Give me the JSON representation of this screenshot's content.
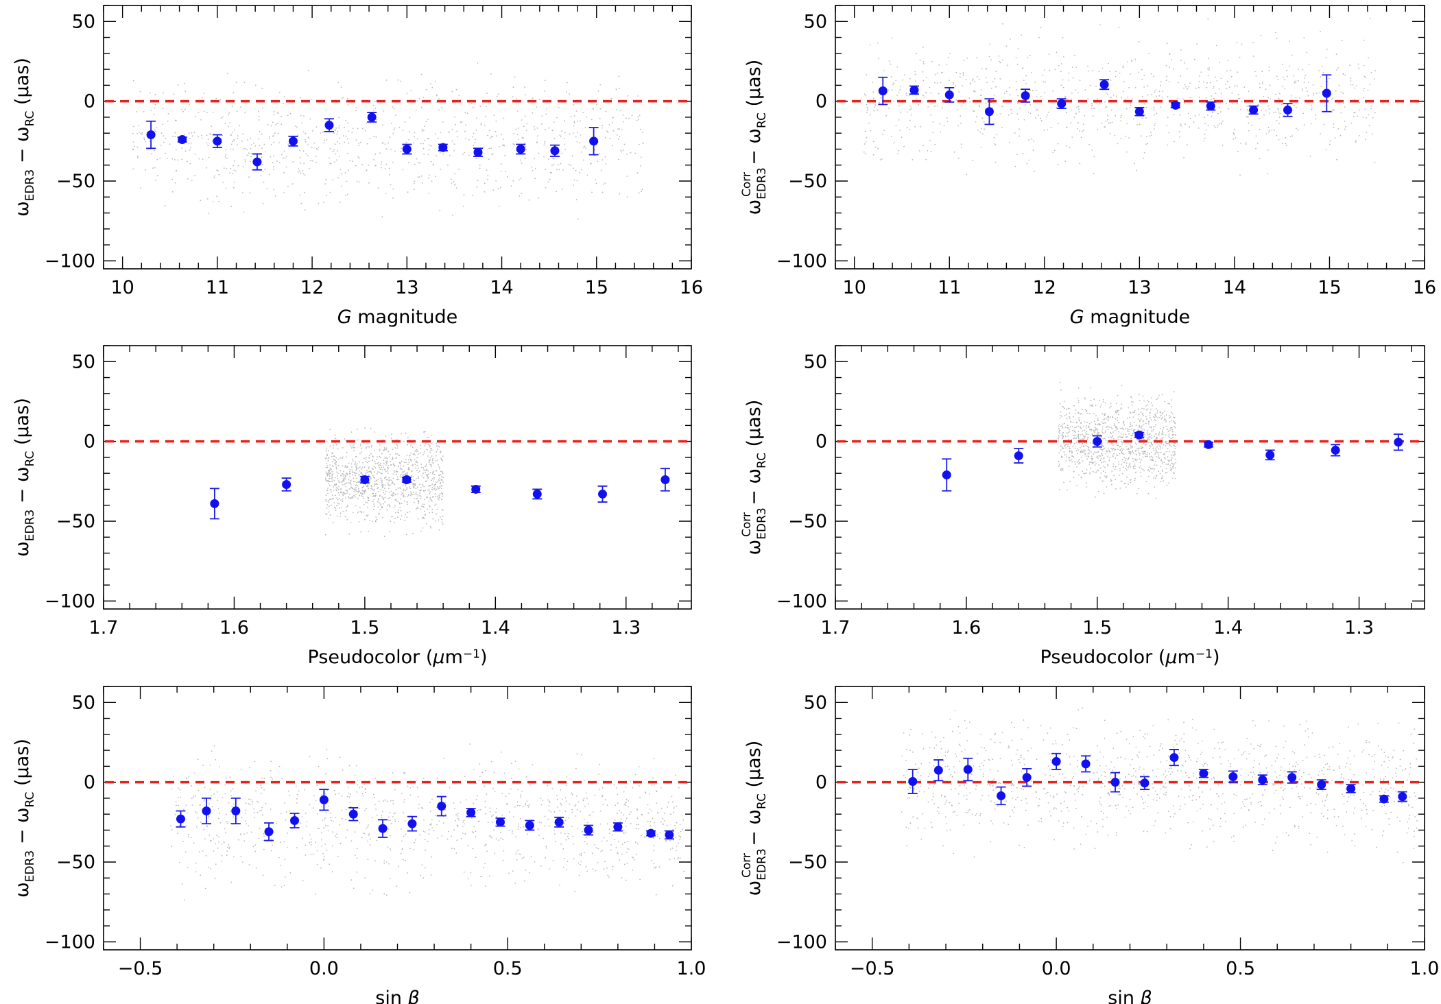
{
  "chart_data": [
    {
      "id": "panel-g-raw",
      "type": "scatter",
      "xlabel_parts": [
        {
          "t": "G",
          "style": "italic"
        },
        {
          "t": " magnitude"
        }
      ],
      "ylabel_parts": [
        {
          "t": "ω"
        },
        {
          "t": "EDR3",
          "sub": true
        },
        {
          "t": " − ω"
        },
        {
          "t": "RC",
          "sub": true
        },
        {
          "t": " (μas)"
        }
      ],
      "xlim": [
        9.8,
        16
      ],
      "ylim": [
        -105,
        60
      ],
      "xticks": [
        10,
        11,
        12,
        13,
        14,
        15,
        16
      ],
      "xtick_labels": [
        "10",
        "11",
        "12",
        "13",
        "14",
        "15",
        "16"
      ],
      "yticks": [
        -100,
        -50,
        0,
        50
      ],
      "ytick_labels": [
        "−100",
        "−50",
        "0",
        "50"
      ],
      "zero_line": 0,
      "background_scatter": {
        "x_range": [
          10.1,
          15.5
        ],
        "y_center": -25,
        "y_spread": 55,
        "count": 900
      },
      "series": [
        {
          "x": [
            10.3,
            10.63,
            11.0,
            11.42,
            11.8,
            12.18,
            12.63,
            13.0,
            13.38,
            13.75,
            14.2,
            14.56,
            14.97
          ],
          "y": [
            -21,
            -24,
            -25,
            -38,
            -25,
            -15,
            -10,
            -30,
            -29,
            -32,
            -30,
            -31,
            -25
          ],
          "err": [
            8.5,
            1.5,
            4,
            5,
            3,
            4,
            3,
            3,
            2,
            2.5,
            3,
            3.5,
            8.5
          ]
        }
      ]
    },
    {
      "id": "panel-g-corr",
      "type": "scatter",
      "xlabel_parts": [
        {
          "t": "G",
          "style": "italic"
        },
        {
          "t": " magnitude"
        }
      ],
      "ylabel_parts": [
        {
          "t": "ω"
        },
        {
          "t": "EDR3",
          "sub": true,
          "sup": "Corr"
        },
        {
          "t": " − ω"
        },
        {
          "t": "RC",
          "sub": true
        },
        {
          "t": " (μas)"
        }
      ],
      "xlim": [
        9.8,
        16
      ],
      "ylim": [
        -105,
        60
      ],
      "xticks": [
        10,
        11,
        12,
        13,
        14,
        15,
        16
      ],
      "xtick_labels": [
        "10",
        "11",
        "12",
        "13",
        "14",
        "15",
        "16"
      ],
      "yticks": [
        -100,
        -50,
        0,
        50
      ],
      "ytick_labels": [
        "−100",
        "−50",
        "0",
        "50"
      ],
      "zero_line": 0,
      "background_scatter": {
        "x_range": [
          10.1,
          15.5
        ],
        "y_center": 0,
        "y_spread": 55,
        "count": 900
      },
      "series": [
        {
          "x": [
            10.3,
            10.63,
            11.0,
            11.42,
            11.8,
            12.18,
            12.63,
            13.0,
            13.38,
            13.75,
            14.2,
            14.56,
            14.97
          ],
          "y": [
            6.5,
            7,
            4,
            -6.5,
            3.5,
            -1.5,
            10.5,
            -6.5,
            -2.5,
            -3,
            -5.5,
            -5.5,
            5
          ],
          "err": [
            8.5,
            2.5,
            4.5,
            8,
            4,
            3,
            3,
            2.5,
            1.5,
            2.5,
            2.5,
            4,
            11.5
          ]
        }
      ]
    },
    {
      "id": "panel-pc-raw",
      "type": "scatter",
      "xlabel_parts": [
        {
          "t": "Pseudocolor ("
        },
        {
          "t": "μ",
          "style": "italic"
        },
        {
          "t": "m"
        },
        {
          "t": "−1",
          "sup": true
        },
        {
          "t": ")"
        }
      ],
      "ylabel_parts": [
        {
          "t": "ω"
        },
        {
          "t": "EDR3",
          "sub": true
        },
        {
          "t": " − ω"
        },
        {
          "t": "RC",
          "sub": true
        },
        {
          "t": " (μas)"
        }
      ],
      "xlim": [
        1.7,
        1.25
      ],
      "ylim": [
        -105,
        60
      ],
      "xticks": [
        1.7,
        1.6,
        1.5,
        1.4,
        1.3
      ],
      "xtick_labels": [
        "1.7",
        "1.6",
        "1.5",
        "1.4",
        "1.3"
      ],
      "yticks": [
        -100,
        -50,
        0,
        50
      ],
      "ytick_labels": [
        "−100",
        "−50",
        "0",
        "50"
      ],
      "zero_line": 0,
      "background_scatter": {
        "x_range": [
          1.44,
          1.53
        ],
        "y_center": -25,
        "y_spread": 40,
        "count": 1100
      },
      "series": [
        {
          "x": [
            1.615,
            1.56,
            1.5,
            1.468,
            1.415,
            1.368,
            1.318,
            1.27
          ],
          "y": [
            -39,
            -27,
            -24,
            -24,
            -30,
            -33,
            -33,
            -24
          ],
          "err": [
            9.5,
            4,
            2,
            1.5,
            2,
            3,
            5,
            7
          ]
        }
      ]
    },
    {
      "id": "panel-pc-corr",
      "type": "scatter",
      "xlabel_parts": [
        {
          "t": "Pseudocolor ("
        },
        {
          "t": "μ",
          "style": "italic"
        },
        {
          "t": "m"
        },
        {
          "t": "−1",
          "sup": true
        },
        {
          "t": ")"
        }
      ],
      "ylabel_parts": [
        {
          "t": "ω"
        },
        {
          "t": "EDR3",
          "sub": true,
          "sup": "Corr"
        },
        {
          "t": " − ω"
        },
        {
          "t": "RC",
          "sub": true
        },
        {
          "t": " (μas)"
        }
      ],
      "xlim": [
        1.7,
        1.25
      ],
      "ylim": [
        -105,
        60
      ],
      "xticks": [
        1.7,
        1.6,
        1.5,
        1.4,
        1.3
      ],
      "xtick_labels": [
        "1.7",
        "1.6",
        "1.5",
        "1.4",
        "1.3"
      ],
      "yticks": [
        -100,
        -50,
        0,
        50
      ],
      "ytick_labels": [
        "−100",
        "−50",
        "0",
        "50"
      ],
      "zero_line": 0,
      "background_scatter": {
        "x_range": [
          1.44,
          1.53
        ],
        "y_center": 0,
        "y_spread": 40,
        "count": 1100
      },
      "series": [
        {
          "x": [
            1.615,
            1.56,
            1.5,
            1.468,
            1.415,
            1.368,
            1.318,
            1.27
          ],
          "y": [
            -21,
            -9,
            0,
            4,
            -2,
            -8.5,
            -5.5,
            -0.5
          ],
          "err": [
            10,
            4.5,
            3.5,
            1.5,
            1.5,
            3,
            3.5,
            5
          ]
        }
      ]
    },
    {
      "id": "panel-sb-raw",
      "type": "scatter",
      "xlabel_parts": [
        {
          "t": "sin "
        },
        {
          "t": "β",
          "style": "italic"
        }
      ],
      "ylabel_parts": [
        {
          "t": "ω"
        },
        {
          "t": "EDR3",
          "sub": true
        },
        {
          "t": " − ω"
        },
        {
          "t": "RC",
          "sub": true
        },
        {
          "t": " (μas)"
        }
      ],
      "xlim": [
        -0.6,
        1.0
      ],
      "ylim": [
        -105,
        60
      ],
      "xticks": [
        -0.5,
        0.0,
        0.5,
        1.0
      ],
      "xtick_labels": [
        "−0.5",
        "0.0",
        "0.5",
        "1.0"
      ],
      "yticks": [
        -100,
        -50,
        0,
        50
      ],
      "ytick_labels": [
        "−100",
        "−50",
        "0",
        "50"
      ],
      "zero_line": 0,
      "background_scatter": {
        "x_range": [
          -0.42,
          0.98
        ],
        "y_center": -25,
        "y_spread": 55,
        "count": 1000
      },
      "series": [
        {
          "x": [
            -0.39,
            -0.32,
            -0.24,
            -0.15,
            -0.08,
            0.0,
            0.08,
            0.16,
            0.24,
            0.32,
            0.4,
            0.48,
            0.56,
            0.64,
            0.72,
            0.8,
            0.89,
            0.94
          ],
          "y": [
            -23,
            -18,
            -18,
            -31,
            -24,
            -11,
            -20,
            -29,
            -26,
            -15,
            -19,
            -25,
            -27,
            -25,
            -30,
            -28,
            -32,
            -33
          ],
          "err": [
            5,
            8,
            8,
            5.5,
            4.5,
            6.5,
            4,
            5.5,
            4.5,
            6,
            2.5,
            2.5,
            3,
            3,
            3,
            2.5,
            1.5,
            2.5
          ]
        }
      ]
    },
    {
      "id": "panel-sb-corr",
      "type": "scatter",
      "xlabel_parts": [
        {
          "t": "sin "
        },
        {
          "t": "β",
          "style": "italic"
        }
      ],
      "ylabel_parts": [
        {
          "t": "ω"
        },
        {
          "t": "EDR3",
          "sub": true,
          "sup": "Corr"
        },
        {
          "t": " − ω"
        },
        {
          "t": "RC",
          "sub": true
        },
        {
          "t": " (μas)"
        }
      ],
      "xlim": [
        -0.6,
        1.0
      ],
      "ylim": [
        -105,
        60
      ],
      "xticks": [
        -0.5,
        0.0,
        0.5,
        1.0
      ],
      "xtick_labels": [
        "−0.5",
        "0.0",
        "0.5",
        "1.0"
      ],
      "yticks": [
        -100,
        -50,
        0,
        50
      ],
      "ytick_labels": [
        "−100",
        "−50",
        "0",
        "50"
      ],
      "zero_line": 0,
      "background_scatter": {
        "x_range": [
          -0.42,
          0.98
        ],
        "y_center": 0,
        "y_spread": 55,
        "count": 1000
      },
      "series": [
        {
          "x": [
            -0.39,
            -0.32,
            -0.24,
            -0.15,
            -0.08,
            0.0,
            0.08,
            0.16,
            0.24,
            0.32,
            0.4,
            0.48,
            0.56,
            0.64,
            0.72,
            0.8,
            0.89,
            0.94
          ],
          "y": [
            0.5,
            7.5,
            8,
            -8.5,
            3,
            13,
            11.5,
            0,
            -0.5,
            15.5,
            5.5,
            3.5,
            1.5,
            3,
            -1.5,
            -4,
            -10.5,
            -9
          ],
          "err": [
            7.5,
            6.5,
            7,
            5.5,
            5.5,
            5,
            5,
            6,
            4,
            5,
            2.5,
            3.5,
            3,
            3.5,
            3,
            2.5,
            2,
            3
          ]
        }
      ]
    }
  ]
}
